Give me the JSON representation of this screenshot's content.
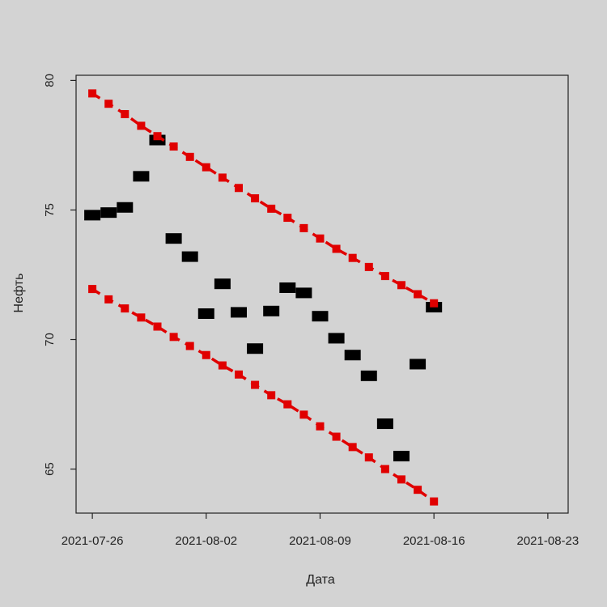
{
  "chart_data": {
    "type": "scatter",
    "xlabel": "Дата",
    "ylabel": "Нефть",
    "background_color": "#d3d3d3",
    "x_ticks": [
      {
        "value": "2021-07-26",
        "label": "2021-07-26"
      },
      {
        "value": "2021-08-02",
        "label": "2021-08-02"
      },
      {
        "value": "2021-08-09",
        "label": "2021-08-09"
      },
      {
        "value": "2021-08-16",
        "label": "2021-08-16"
      },
      {
        "value": "2021-08-23",
        "label": "2021-08-23"
      }
    ],
    "y_ticks": [
      65,
      70,
      75,
      80
    ],
    "ylim": [
      63.3,
      80.2
    ],
    "xlim": [
      "2021-07-25T00:00",
      "2021-08-24T06:00"
    ],
    "series": [
      {
        "marker": "square",
        "color": "#000000",
        "points": [
          {
            "x": "2021-07-26",
            "y": 74.8
          },
          {
            "x": "2021-07-27",
            "y": 74.9
          },
          {
            "x": "2021-07-28",
            "y": 75.1
          },
          {
            "x": "2021-07-29",
            "y": 76.3
          },
          {
            "x": "2021-07-30",
            "y": 77.7
          },
          {
            "x": "2021-07-31",
            "y": 73.9
          },
          {
            "x": "2021-08-01",
            "y": 73.2
          },
          {
            "x": "2021-08-02",
            "y": 71.0
          },
          {
            "x": "2021-08-03",
            "y": 72.15
          },
          {
            "x": "2021-08-04",
            "y": 71.05
          },
          {
            "x": "2021-08-05",
            "y": 69.65
          },
          {
            "x": "2021-08-06",
            "y": 71.1
          },
          {
            "x": "2021-08-07",
            "y": 72.0
          },
          {
            "x": "2021-08-08",
            "y": 71.8
          },
          {
            "x": "2021-08-09",
            "y": 70.9
          },
          {
            "x": "2021-08-10",
            "y": 70.05
          },
          {
            "x": "2021-08-11",
            "y": 69.4
          },
          {
            "x": "2021-08-12",
            "y": 68.6
          },
          {
            "x": "2021-08-13",
            "y": 66.75
          },
          {
            "x": "2021-08-14",
            "y": 65.5
          },
          {
            "x": "2021-08-15",
            "y": 69.05
          },
          {
            "x": "2021-08-16",
            "y": 71.25
          }
        ]
      },
      {
        "marker": "square-dashed-line",
        "color": "#e00000",
        "points": [
          {
            "x": "2021-07-26",
            "y": 79.5
          },
          {
            "x": "2021-07-27",
            "y": 79.1
          },
          {
            "x": "2021-07-28",
            "y": 78.7
          },
          {
            "x": "2021-07-29",
            "y": 78.25
          },
          {
            "x": "2021-07-30",
            "y": 77.85
          },
          {
            "x": "2021-07-31",
            "y": 77.45
          },
          {
            "x": "2021-08-01",
            "y": 77.05
          },
          {
            "x": "2021-08-02",
            "y": 76.65
          },
          {
            "x": "2021-08-03",
            "y": 76.25
          },
          {
            "x": "2021-08-04",
            "y": 75.85
          },
          {
            "x": "2021-08-05",
            "y": 75.45
          },
          {
            "x": "2021-08-06",
            "y": 75.05
          },
          {
            "x": "2021-08-07",
            "y": 74.7
          },
          {
            "x": "2021-08-08",
            "y": 74.3
          },
          {
            "x": "2021-08-09",
            "y": 73.9
          },
          {
            "x": "2021-08-10",
            "y": 73.5
          },
          {
            "x": "2021-08-11",
            "y": 73.15
          },
          {
            "x": "2021-08-12",
            "y": 72.8
          },
          {
            "x": "2021-08-13",
            "y": 72.45
          },
          {
            "x": "2021-08-14",
            "y": 72.1
          },
          {
            "x": "2021-08-15",
            "y": 71.75
          },
          {
            "x": "2021-08-16",
            "y": 71.4
          }
        ]
      },
      {
        "marker": "square-dashed-line",
        "color": "#e00000",
        "points": [
          {
            "x": "2021-07-26",
            "y": 71.95
          },
          {
            "x": "2021-07-27",
            "y": 71.55
          },
          {
            "x": "2021-07-28",
            "y": 71.2
          },
          {
            "x": "2021-07-29",
            "y": 70.85
          },
          {
            "x": "2021-07-30",
            "y": 70.5
          },
          {
            "x": "2021-07-31",
            "y": 70.1
          },
          {
            "x": "2021-08-01",
            "y": 69.75
          },
          {
            "x": "2021-08-02",
            "y": 69.4
          },
          {
            "x": "2021-08-03",
            "y": 69.0
          },
          {
            "x": "2021-08-04",
            "y": 68.65
          },
          {
            "x": "2021-08-05",
            "y": 68.25
          },
          {
            "x": "2021-08-06",
            "y": 67.85
          },
          {
            "x": "2021-08-07",
            "y": 67.5
          },
          {
            "x": "2021-08-08",
            "y": 67.1
          },
          {
            "x": "2021-08-09",
            "y": 66.65
          },
          {
            "x": "2021-08-10",
            "y": 66.25
          },
          {
            "x": "2021-08-11",
            "y": 65.85
          },
          {
            "x": "2021-08-12",
            "y": 65.45
          },
          {
            "x": "2021-08-13",
            "y": 65.0
          },
          {
            "x": "2021-08-14",
            "y": 64.6
          },
          {
            "x": "2021-08-15",
            "y": 64.2
          },
          {
            "x": "2021-08-16",
            "y": 63.75
          }
        ]
      }
    ]
  }
}
